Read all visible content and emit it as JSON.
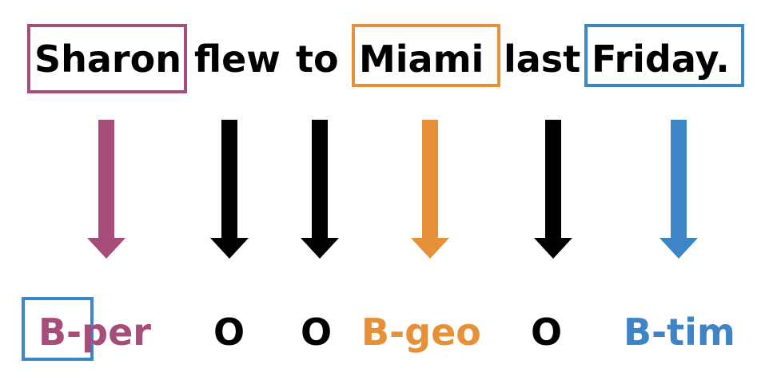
{
  "sentence": {
    "words": [
      {
        "text": "Sharon",
        "boxed": true,
        "color": "#a64d79"
      },
      {
        "text": "flew",
        "boxed": false,
        "color": "#000000"
      },
      {
        "text": "to",
        "boxed": false,
        "color": "#000000"
      },
      {
        "text": "Miami",
        "boxed": true,
        "color": "#e69138"
      },
      {
        "text": "last",
        "boxed": false,
        "color": "#000000"
      },
      {
        "text": "Friday.",
        "boxed": true,
        "color": "#3d85c6"
      }
    ]
  },
  "tags": [
    {
      "prefix": "B-",
      "label": "per",
      "color": "#a64d79",
      "prefix_boxed": true,
      "prefix_box_color": "#3d85c6"
    },
    {
      "prefix": "",
      "label": "O",
      "color": "#000000",
      "prefix_boxed": false
    },
    {
      "prefix": "",
      "label": "O",
      "color": "#000000",
      "prefix_boxed": false
    },
    {
      "prefix": "B-",
      "label": "geo",
      "color": "#e69138",
      "prefix_boxed": false
    },
    {
      "prefix": "",
      "label": "O",
      "color": "#000000",
      "prefix_boxed": false
    },
    {
      "prefix": "B-",
      "label": "tim",
      "color": "#3d85c6",
      "prefix_boxed": false
    }
  ],
  "arrows": [
    {
      "color": "#a64d79"
    },
    {
      "color": "#000000"
    },
    {
      "color": "#000000"
    },
    {
      "color": "#e69138"
    },
    {
      "color": "#000000"
    },
    {
      "color": "#3d85c6"
    }
  ]
}
